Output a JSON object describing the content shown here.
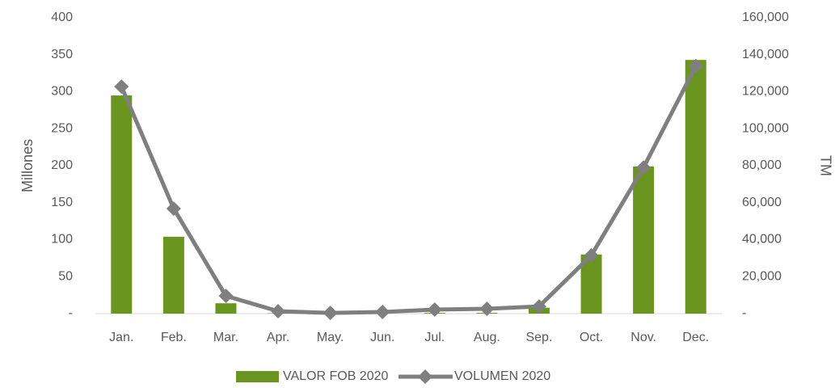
{
  "chart_data": {
    "type": "bar",
    "categories": [
      "Jan.",
      "Feb.",
      "Mar.",
      "Apr.",
      "May.",
      "Jun.",
      "Jul.",
      "Aug.",
      "Sep.",
      "Oct.",
      "Nov.",
      "Dec."
    ],
    "series": [
      {
        "name": "VALOR FOB 2020",
        "type": "bar",
        "color": "#6a961f",
        "values": [
          295,
          104,
          14,
          0.5,
          0.2,
          0.3,
          1,
          1,
          8,
          80,
          199,
          343
        ]
      },
      {
        "name": "VOLUMEN 2020",
        "type": "line",
        "axis": "y2",
        "color": "#7f7f7f",
        "values": [
          122800,
          56800,
          9600,
          1300,
          400,
          900,
          2200,
          2600,
          3900,
          31500,
          79000,
          133800
        ]
      }
    ],
    "ylabel": "Millones",
    "y2label": "TM",
    "ylim": [
      0,
      400
    ],
    "yticks": [
      {
        "value": 0,
        "label": "-"
      },
      50,
      100,
      150,
      200,
      250,
      300,
      350,
      400
    ],
    "y2lim": [
      0,
      160000
    ],
    "y2ticks": [
      {
        "value": 0,
        "label": "-"
      },
      {
        "value": 20000,
        "label": "20,000"
      },
      {
        "value": 40000,
        "label": "40,000"
      },
      {
        "value": 60000,
        "label": "60,000"
      },
      {
        "value": 80000,
        "label": "80,000"
      },
      {
        "value": 100000,
        "label": "100,000"
      },
      {
        "value": 120000,
        "label": "120,000"
      },
      {
        "value": 140000,
        "label": "140,000"
      },
      {
        "value": 160000,
        "label": "160,000"
      }
    ],
    "grid": false,
    "legend": "bottom"
  }
}
